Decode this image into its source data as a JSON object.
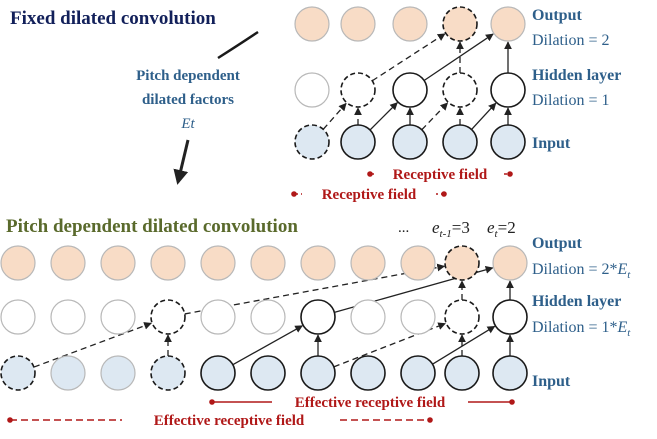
{
  "top": {
    "title": "Fixed dilated convolution",
    "output_label": "Output",
    "output_dilation": "Dilation = 2",
    "hidden_label": "Hidden layer",
    "hidden_dilation": "Dilation = 1",
    "input_label": "Input",
    "receptive_field_label_1": "Receptive field",
    "receptive_field_label_2": "Receptive field"
  },
  "side_note": {
    "line1": "Pitch dependent",
    "line2": "dilated factors",
    "line3": "Et"
  },
  "bottom": {
    "title": "Pitch dependent dilated convolution",
    "ellipsis": "...",
    "e_prev": "e",
    "e_prev_sub": "t-1",
    "e_prev_val": "=3",
    "e_cur": "e",
    "e_cur_sub": "t",
    "e_cur_val": "=2",
    "output_label": "Output",
    "output_dilation_prefix": "Dilation = 2*",
    "output_dilation_var": "E",
    "output_dilation_sub": "t",
    "hidden_label": "Hidden layer",
    "hidden_dilation_prefix": "Dilation = 1*",
    "hidden_dilation_var": "E",
    "hidden_dilation_sub": "t",
    "input_label": "Input",
    "effective_field_label_1": "Effective receptive field",
    "effective_field_label_2": "Effective receptive field"
  },
  "colors": {
    "output_fill": "#f8dcc6",
    "input_fill": "#dde8f2",
    "node_stroke": "#1a1a1a",
    "faint_stroke": "#b8b8b8",
    "label_blue": "#2e5f8a",
    "title_navy": "#12205a",
    "title_olive": "#5a6a2c",
    "field_red": "#b01818"
  }
}
